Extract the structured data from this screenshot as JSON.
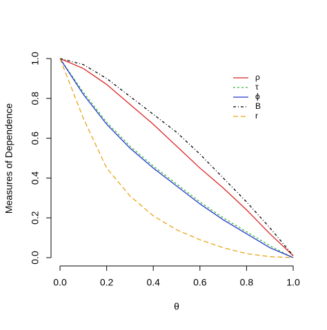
{
  "chart_data": {
    "type": "line",
    "x_label": "θ",
    "y_label": "Measures of Dependence",
    "x": [
      0,
      0.1,
      0.2,
      0.3,
      0.4,
      0.5,
      0.6,
      0.7,
      0.8,
      0.9,
      1
    ],
    "series": [
      {
        "name": "ρ",
        "color": "#dd2222",
        "dash": "none",
        "values": [
          1,
          0.95,
          0.87,
          0.77,
          0.67,
          0.56,
          0.45,
          0.35,
          0.24,
          0.12,
          0.01
        ]
      },
      {
        "name": "τ",
        "color": "#33bb33",
        "dash": "3 3",
        "values": [
          1,
          0.83,
          0.68,
          0.56,
          0.46,
          0.37,
          0.28,
          0.2,
          0.13,
          0.06,
          0
        ]
      },
      {
        "name": "ϕ",
        "color": "#2233cc",
        "dash": "none",
        "values": [
          1,
          0.82,
          0.67,
          0.55,
          0.45,
          0.36,
          0.27,
          0.19,
          0.12,
          0.05,
          0
        ]
      },
      {
        "name": "B",
        "color": "#000000",
        "dash": "4 3 1 3",
        "values": [
          1,
          0.97,
          0.9,
          0.81,
          0.72,
          0.63,
          0.52,
          0.4,
          0.28,
          0.15,
          0.01
        ]
      },
      {
        "name": "r",
        "color": "#e8a317",
        "dash": "7 4",
        "values": [
          1,
          0.7,
          0.45,
          0.31,
          0.21,
          0.14,
          0.09,
          0.05,
          0.02,
          0.005,
          0
        ]
      }
    ],
    "xlim": [
      0,
      1
    ],
    "ylim": [
      0,
      1
    ],
    "xticks": [
      {
        "value": 0,
        "label": "0.0"
      },
      {
        "value": 0.2,
        "label": "0.2"
      },
      {
        "value": 0.4,
        "label": "0.4"
      },
      {
        "value": 0.6,
        "label": "0.6"
      },
      {
        "value": 0.8,
        "label": "0.8"
      },
      {
        "value": 1,
        "label": "1.0"
      }
    ],
    "yticks": [
      {
        "value": 0,
        "label": "0.0"
      },
      {
        "value": 0.2,
        "label": "0.2"
      },
      {
        "value": 0.4,
        "label": "0.4"
      },
      {
        "value": 0.6,
        "label": "0.6"
      },
      {
        "value": 0.8,
        "label": "0.8"
      },
      {
        "value": 1,
        "label": "1.0"
      }
    ],
    "legend": "top-right"
  }
}
